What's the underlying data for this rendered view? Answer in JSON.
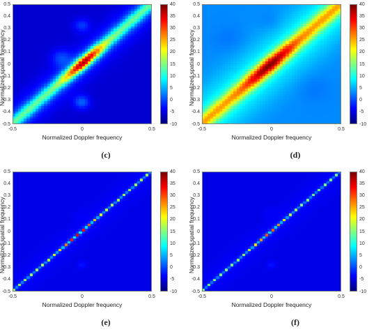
{
  "chart_data": [
    {
      "type": "heatmap",
      "caption": "(c)",
      "xlabel": "Normalized Doppler frequency",
      "ylabel": "Normalized spatial frequency",
      "xlim": [
        -0.5,
        0.5
      ],
      "ylim": [
        -0.5,
        0.5
      ],
      "xticks": [
        "-0.5",
        "0",
        "0.5"
      ],
      "yticks": [
        "0.5",
        "0.4",
        "0.3",
        "0.2",
        "0.1",
        "0",
        "-0.1",
        "-0.2",
        "-0.3",
        "-0.4",
        "-0.5"
      ],
      "colorbar": {
        "min": -10,
        "max": 40,
        "ticks": [
          "40",
          "35",
          "30",
          "25",
          "20",
          "15",
          "10",
          "5",
          "0",
          "-5",
          "-10"
        ]
      },
      "colormap": "jet",
      "grid_size": 48,
      "background_level": -6,
      "ridge": {
        "peak": 38,
        "base": 14,
        "width": 0.03,
        "spread": 0.13,
        "center": 0.02
      },
      "blobs": [
        {
          "x": 0.0,
          "y": -0.32,
          "level": 1,
          "sigma": 0.04
        },
        {
          "x": 0.0,
          "y": 0.32,
          "level": -1,
          "sigma": 0.04
        },
        {
          "x": -0.15,
          "y": 0.05,
          "level": -1,
          "sigma": 0.05
        }
      ],
      "haze": {
        "level": 0,
        "sigma": 0.08
      },
      "dots": false
    },
    {
      "type": "heatmap",
      "caption": "(d)",
      "xlabel": "Normalized Doppler frequency",
      "ylabel": "Normalized spatial frequency",
      "xlim": [
        -0.5,
        0.5
      ],
      "ylim": [
        -0.5,
        0.5
      ],
      "xticks": [
        "-0.5",
        "0",
        "0.5"
      ],
      "yticks": [
        "0.5",
        "0.4",
        "0.3",
        "0.2",
        "0.1",
        "0",
        "-0.1",
        "-0.2",
        "-0.3",
        "-0.4",
        "-0.5"
      ],
      "colorbar": {
        "min": -10,
        "max": 40,
        "ticks": [
          "40",
          "35",
          "30",
          "25",
          "20",
          "15",
          "10",
          "5",
          "0",
          "-5",
          "-10"
        ]
      },
      "colormap": "jet",
      "grid_size": 48,
      "background_level": 3,
      "ridge": {
        "peak": 40,
        "base": 26,
        "width": 0.04,
        "spread": 0.16,
        "center": -0.02
      },
      "blobs": [
        {
          "x": 0.0,
          "y": -0.32,
          "level": 3,
          "sigma": 0.06
        },
        {
          "x": 0.0,
          "y": 0.35,
          "level": 2,
          "sigma": 0.06
        },
        {
          "x": 0.3,
          "y": -0.2,
          "level": 2,
          "sigma": 0.08
        },
        {
          "x": -0.3,
          "y": 0.2,
          "level": 2,
          "sigma": 0.08
        }
      ],
      "haze": {
        "level": 10,
        "sigma": 0.14
      },
      "dots": false
    },
    {
      "type": "heatmap",
      "caption": "(e)",
      "xlabel": "Normalized Doppler frequency",
      "ylabel": "Normalized spatial frequency",
      "xlim": [
        -0.5,
        0.5
      ],
      "ylim": [
        -0.5,
        0.5
      ],
      "xticks": [
        "-0.5",
        "0",
        "0.5"
      ],
      "yticks": [
        "0.5",
        "0.4",
        "0.3",
        "0.2",
        "0.1",
        "0",
        "-0.1",
        "-0.2",
        "-0.3",
        "-0.4",
        "-0.5"
      ],
      "colorbar": {
        "min": -10,
        "max": 40,
        "ticks": [
          "40",
          "35",
          "30",
          "25",
          "20",
          "15",
          "10",
          "5",
          "0",
          "-5",
          "-10"
        ]
      },
      "colormap": "jet",
      "grid_size": 48,
      "background_level": -5,
      "ridge": {
        "peak": 35,
        "base": 17,
        "width": 0.013,
        "spread": 0.12,
        "center": -0.04
      },
      "blobs": [
        {
          "x": 0.0,
          "y": -0.28,
          "level": 6,
          "sigma": 0.018
        },
        {
          "x": 0.0,
          "y": 0.12,
          "level": -2,
          "sigma": 0.03
        }
      ],
      "haze": {
        "level": -2,
        "sigma": 0.05
      },
      "dots": true
    },
    {
      "type": "heatmap",
      "caption": "(f)",
      "xlabel": "Normalized Doppler frequency",
      "ylabel": "Normalized spatial frequency",
      "xlim": [
        -0.5,
        0.5
      ],
      "ylim": [
        -0.5,
        0.5
      ],
      "xticks": [
        "-0.5",
        "0",
        "0.5"
      ],
      "yticks": [
        "0.5",
        "0.4",
        "0.3",
        "0.2",
        "0.1",
        "0",
        "-0.1",
        "-0.2",
        "-0.3",
        "-0.4",
        "-0.5"
      ],
      "colorbar": {
        "min": -10,
        "max": 40,
        "ticks": [
          "40",
          "35",
          "30",
          "25",
          "20",
          "15",
          "10",
          "5",
          "0",
          "-5",
          "-10"
        ]
      },
      "colormap": "jet",
      "grid_size": 48,
      "background_level": -5,
      "ridge": {
        "peak": 30,
        "base": 15,
        "width": 0.013,
        "spread": 0.12,
        "center": -0.02
      },
      "blobs": [
        {
          "x": 0.0,
          "y": -0.28,
          "level": 6,
          "sigma": 0.018
        },
        {
          "x": 0.0,
          "y": 0.15,
          "level": -2,
          "sigma": 0.03
        }
      ],
      "haze": {
        "level": -2,
        "sigma": 0.05
      },
      "dots": true
    }
  ]
}
